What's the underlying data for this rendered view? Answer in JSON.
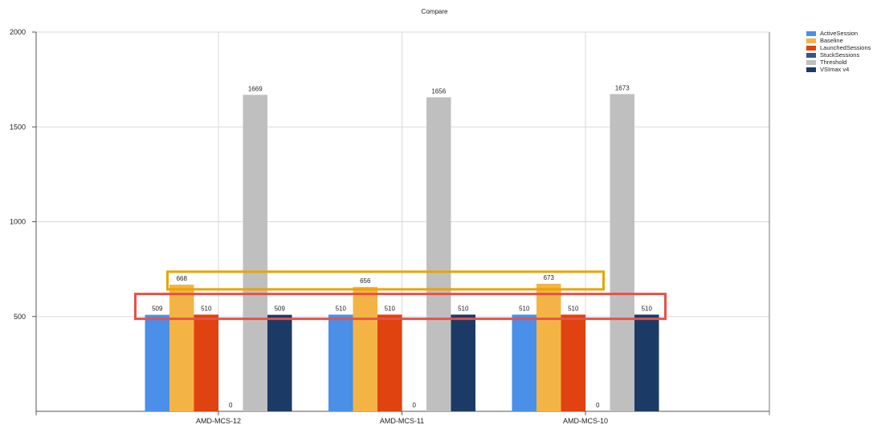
{
  "chart_data": {
    "type": "bar",
    "title": "Compare",
    "xlabel": "",
    "ylabel": "",
    "ylim": [
      0,
      2000
    ],
    "yticks": [
      500,
      1000,
      1500,
      2000
    ],
    "grid": true,
    "legend_position": "top-right",
    "categories": [
      "AMD-MCS-12",
      "AMD-MCS-11",
      "AMD-MCS-10"
    ],
    "series": [
      {
        "name": "ActiveSession",
        "color": "#4a8fe8",
        "values": [
          509,
          510,
          510
        ],
        "labels": [
          "509",
          "510",
          "510"
        ]
      },
      {
        "name": "Baseline",
        "color": "#f4b445",
        "values": [
          668,
          656,
          673
        ],
        "labels": [
          "668",
          "656",
          "673"
        ]
      },
      {
        "name": "LaunchedSessions",
        "color": "#e0430f",
        "values": [
          510,
          510,
          510
        ],
        "labels": [
          "510",
          "510",
          "510"
        ]
      },
      {
        "name": "StuckSessions",
        "color": "#2b5b8a",
        "values": [
          0,
          0,
          0
        ],
        "labels": [
          "0",
          "0",
          "0"
        ]
      },
      {
        "name": "Threshold",
        "color": "#bfbfbf",
        "values": [
          1669,
          1656,
          1673
        ],
        "labels": [
          "1669",
          "1656",
          "1673"
        ]
      },
      {
        "name": "VSImax v4",
        "color": "#1c3a66",
        "values": [
          509,
          510,
          510
        ],
        "labels": [
          "509",
          "510",
          "510"
        ]
      }
    ],
    "annotations": [
      {
        "type": "highlight-box",
        "color": "#e8a400",
        "around": "Baseline data labels"
      },
      {
        "type": "highlight-box",
        "color": "#e8504a",
        "around": "ActiveSession, LaunchedSessions and VSImax v4 data labels"
      }
    ]
  }
}
